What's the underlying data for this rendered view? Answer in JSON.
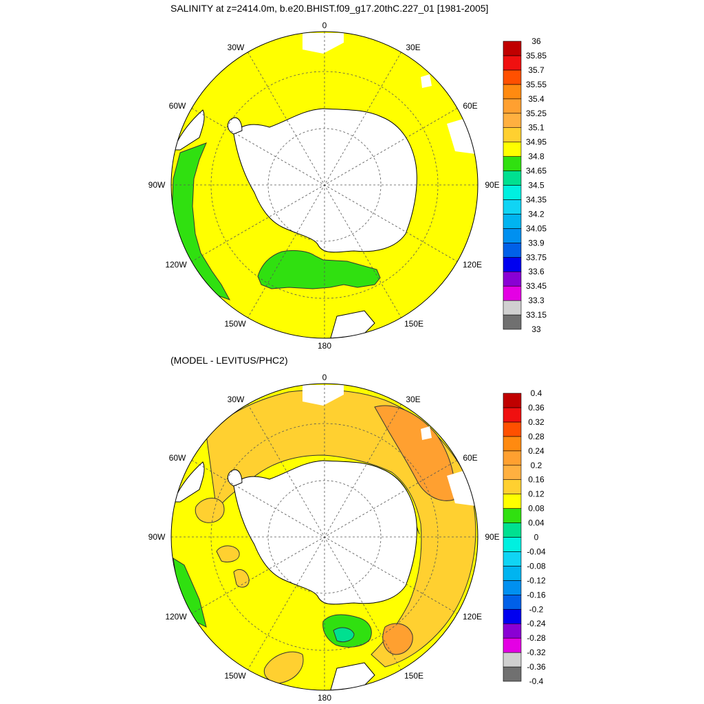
{
  "title": "SALINITY at z=2414.0m, b.e20.BHIST.f09_g17.20thC.227_01 [1981-2005]",
  "subtitle": "(MODEL - LEVITUS/PHC2)",
  "meridian_labels": [
    "0",
    "30E",
    "60E",
    "90E",
    "120E",
    "150E",
    "180",
    "150W",
    "120W",
    "90W",
    "60W",
    "30W"
  ],
  "colors": {
    "land": "#ffffff",
    "coast": "#000000",
    "contour": "#333333"
  },
  "chart_data": [
    {
      "type": "heatmap",
      "title": "SALINITY at z=2414.0m, b.e20.BHIST.f09_g17.20thC.227_01 [1981-2005]",
      "projection": "south polar stereographic",
      "dominant_value_range": [
        34.8,
        34.95
      ],
      "colorbar": {
        "levels": [
          "33",
          "33.15",
          "33.3",
          "33.45",
          "33.6",
          "33.75",
          "33.9",
          "34.05",
          "34.2",
          "34.35",
          "34.5",
          "34.65",
          "34.8",
          "34.95",
          "35.1",
          "35.25",
          "35.4",
          "35.55",
          "35.7",
          "35.85",
          "36"
        ],
        "colors": [
          "#707070",
          "#d0d0d0",
          "#e400e4",
          "#8a00d4",
          "#0000f0",
          "#0060e8",
          "#0090f0",
          "#00b4f0",
          "#10d4f4",
          "#00f0e0",
          "#00e090",
          "#30e010",
          "#ffff00",
          "#ffd030",
          "#ffb040",
          "#ffa030",
          "#ff8a10",
          "#ff5000",
          "#f01010",
          "#c00000"
        ]
      }
    },
    {
      "type": "heatmap",
      "title": "(MODEL - LEVITUS/PHC2)",
      "projection": "south polar stereographic",
      "dominant_value_range": [
        0.08,
        0.16
      ],
      "colorbar": {
        "levels": [
          "-0.4",
          "-0.36",
          "-0.32",
          "-0.28",
          "-0.24",
          "-0.2",
          "-0.16",
          "-0.12",
          "-0.08",
          "-0.04",
          "0",
          "0.04",
          "0.08",
          "0.12",
          "0.16",
          "0.2",
          "0.24",
          "0.28",
          "0.32",
          "0.36",
          "0.4"
        ],
        "colors": [
          "#707070",
          "#d0d0d0",
          "#e400e4",
          "#8a00d4",
          "#0000f0",
          "#0060e8",
          "#0090f0",
          "#00b4f0",
          "#10d4f4",
          "#00f0e0",
          "#00e090",
          "#30e010",
          "#ffff00",
          "#ffd030",
          "#ffb040",
          "#ffa030",
          "#ff8a10",
          "#ff5000",
          "#f01010",
          "#c00000"
        ]
      }
    }
  ]
}
